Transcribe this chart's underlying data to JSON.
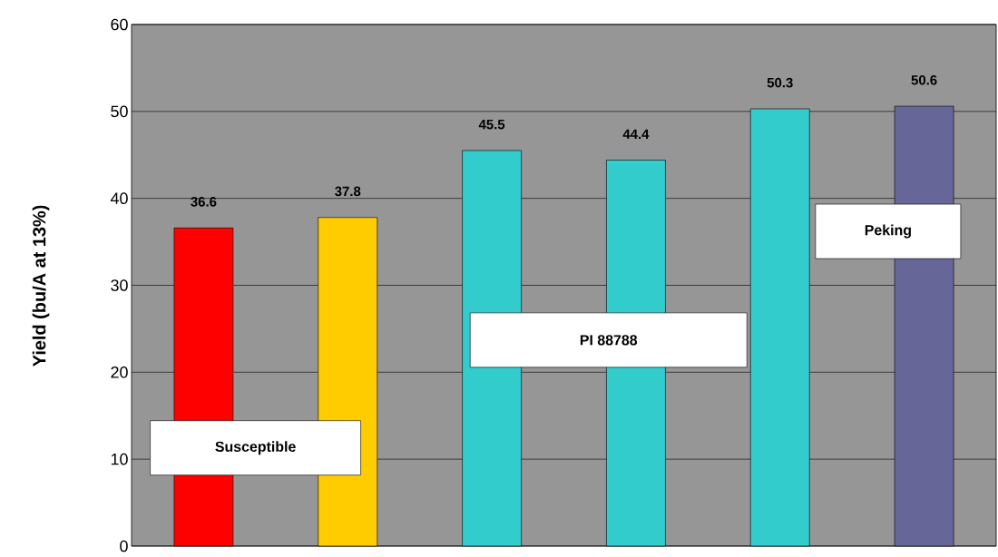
{
  "chart_data": {
    "type": "bar",
    "ylabel": "Yield (bu/A at 13%)",
    "categories": [
      null,
      null,
      null,
      null,
      null,
      null
    ],
    "values": [
      36.6,
      37.8,
      45.5,
      44.4,
      50.3,
      50.6
    ],
    "colors": [
      "#ff0000",
      "#ffcc00",
      "#33cccc",
      "#33cccc",
      "#33cccc",
      "#666699"
    ],
    "ylim": [
      0,
      60
    ],
    "yticks": [
      0,
      10,
      20,
      30,
      40,
      50,
      60
    ],
    "grid": "y",
    "tick_labels": "y",
    "data_labels": true,
    "annotations": [
      "Susceptible",
      "PI 88788",
      "Peking"
    ]
  }
}
